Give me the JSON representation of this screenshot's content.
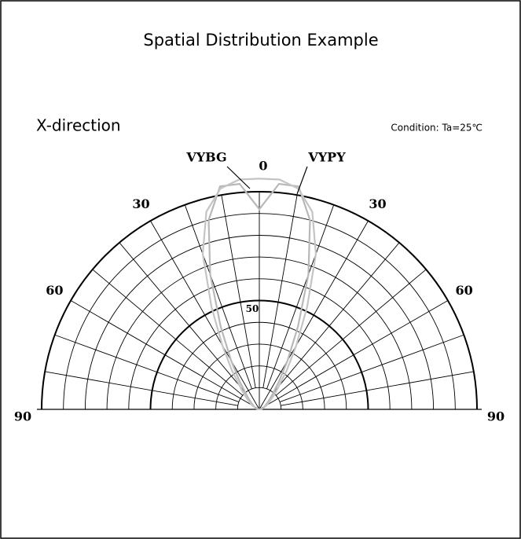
{
  "chart_data": {
    "type": "polar",
    "title": "Spatial Distribution Example",
    "subtitle": "X-direction",
    "annotation": "Condition: Ta=25℃",
    "x": [
      -90,
      -80,
      -70,
      -60,
      -50,
      -45,
      -40,
      -35,
      -30,
      -25,
      -20,
      -15,
      -10,
      -5,
      0,
      5,
      10,
      15,
      20,
      25,
      30,
      35,
      40,
      45,
      50,
      60,
      70,
      80,
      90
    ],
    "series": [
      {
        "name": "VYBG",
        "color": "#b8b8b8",
        "values": [
          0,
          1,
          2,
          3,
          5,
          7,
          10,
          16,
          26,
          42,
          66,
          90,
          104,
          104,
          92,
          104,
          104,
          90,
          66,
          42,
          26,
          16,
          10,
          7,
          5,
          3,
          2,
          1,
          0
        ]
      },
      {
        "name": "VYPY",
        "color": "#c4c4c4",
        "values": [
          0,
          1,
          2,
          4,
          7,
          10,
          14,
          22,
          34,
          52,
          76,
          94,
          103,
          106,
          106,
          106,
          103,
          94,
          76,
          52,
          34,
          22,
          14,
          10,
          7,
          4,
          2,
          1,
          0
        ]
      }
    ],
    "xlim": [
      -90,
      90
    ],
    "xticks": [
      -90,
      -80,
      -70,
      -60,
      -50,
      -40,
      -30,
      -20,
      -10,
      0,
      10,
      20,
      30,
      40,
      50,
      60,
      70,
      80,
      90
    ],
    "angle_labels": [
      {
        "value": -90,
        "label": "90"
      },
      {
        "value": -60,
        "label": "60"
      },
      {
        "value": -30,
        "label": "30"
      },
      0,
      30,
      60,
      90
    ],
    "ylim": [
      0,
      100
    ],
    "yticks": [
      10,
      20,
      30,
      40,
      50,
      60,
      70,
      80,
      90,
      100
    ],
    "labeled_yticks": [
      50
    ],
    "major_yticks": [
      50,
      100
    ],
    "grid": true
  }
}
